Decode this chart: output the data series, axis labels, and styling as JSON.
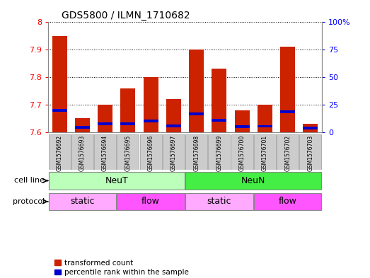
{
  "title": "GDS5800 / ILMN_1710682",
  "samples": [
    "GSM1576692",
    "GSM1576693",
    "GSM1576694",
    "GSM1576695",
    "GSM1576696",
    "GSM1576697",
    "GSM1576698",
    "GSM1576699",
    "GSM1576700",
    "GSM1576701",
    "GSM1576702",
    "GSM1576703"
  ],
  "red_values": [
    7.95,
    7.65,
    7.7,
    7.76,
    7.8,
    7.72,
    7.9,
    7.83,
    7.68,
    7.7,
    7.91,
    7.63
  ],
  "blue_values": [
    7.68,
    7.618,
    7.63,
    7.63,
    7.64,
    7.622,
    7.667,
    7.643,
    7.62,
    7.621,
    7.673,
    7.615
  ],
  "blue_bar_height": 0.01,
  "ymin": 7.6,
  "ymax": 8.0,
  "y_ticks_left": [
    7.6,
    7.7,
    7.8,
    7.9,
    8.0
  ],
  "y_ticks_right_pct": [
    0,
    25,
    50,
    75,
    100
  ],
  "right_labels": [
    "0",
    "25",
    "50",
    "75",
    "100%"
  ],
  "bar_color": "#cc2200",
  "blue_color": "#0000cc",
  "bar_width": 0.65,
  "neut_color": "#bbffbb",
  "neun_color": "#44ee44",
  "static_color": "#ffaaff",
  "flow_color": "#ff55ff",
  "bg_gray": "#cccccc",
  "label_color": "cell line",
  "label_protocol": "protocol",
  "legend_red": "transformed count",
  "legend_blue": "percentile rank within the sample"
}
